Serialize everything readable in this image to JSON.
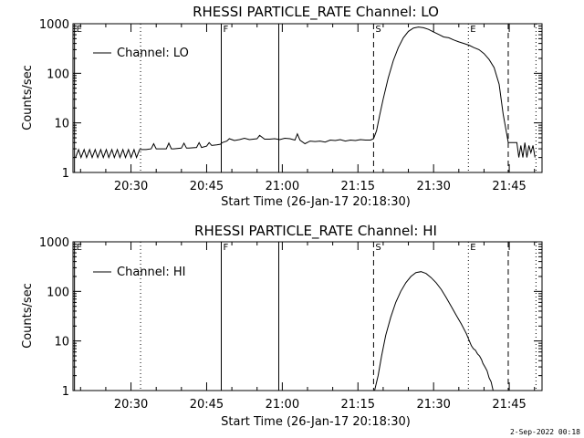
{
  "footer": {
    "timestamp": "2-Sep-2022 00:18"
  },
  "chart_data": [
    {
      "type": "line",
      "title": "RHESSI PARTICLE_RATE Channel: LO",
      "xlabel": "Start Time (26-Jan-17 20:18:30)",
      "ylabel": "Counts/sec",
      "x_unit": "minutes since 20:18:30",
      "xlim": [
        0,
        93
      ],
      "ylim": [
        1,
        1000
      ],
      "y_scale": "log",
      "x_ticks": [
        {
          "value": 11.5,
          "label": "20:30"
        },
        {
          "value": 26.5,
          "label": "20:45"
        },
        {
          "value": 41.5,
          "label": "21:00"
        },
        {
          "value": 56.5,
          "label": "21:15"
        },
        {
          "value": 71.5,
          "label": "21:30"
        },
        {
          "value": 86.5,
          "label": "21:45"
        }
      ],
      "y_ticks": [
        {
          "value": 1,
          "label": "1"
        },
        {
          "value": 10,
          "label": "10"
        },
        {
          "value": 100,
          "label": "100"
        },
        {
          "value": 1000,
          "label": "1000"
        }
      ],
      "legend": {
        "position": "top-left",
        "entries": [
          "Channel: LO"
        ]
      },
      "markers": [
        {
          "label": "E",
          "x": 0.3,
          "style": "solid"
        },
        {
          "label": "",
          "x": 13.4,
          "style": "dotted"
        },
        {
          "label": "F",
          "x": 29.4,
          "style": "solid"
        },
        {
          "label": "",
          "x": 40.8,
          "style": "solid"
        },
        {
          "label": "S",
          "x": 59.6,
          "style": "dashed"
        },
        {
          "label": "E",
          "x": 78.4,
          "style": "dotted"
        },
        {
          "label": "",
          "x": 86.3,
          "style": "dashed"
        },
        {
          "label": "",
          "x": 91.8,
          "style": "dotted"
        }
      ],
      "series": [
        {
          "name": "Channel: LO",
          "x": [
            0.5,
            1.1,
            1.6,
            2.2,
            2.7,
            3.3,
            3.8,
            4.4,
            4.9,
            5.5,
            6.0,
            6.6,
            7.1,
            7.7,
            8.2,
            8.8,
            9.3,
            9.9,
            10.4,
            11.0,
            11.5,
            12.1,
            12.6,
            13.2,
            13.4,
            14.5,
            15.5,
            16.0,
            16.5,
            17.0,
            18.5,
            19.0,
            19.5,
            20.0,
            21.5,
            22.0,
            22.5,
            23.0,
            24.5,
            25.0,
            25.5,
            26.5,
            27.0,
            27.5,
            28.5,
            29.2,
            29.6,
            30.5,
            31.0,
            32.0,
            33.0,
            34.0,
            35.0,
            36.5,
            37.0,
            38.0,
            39.0,
            40.0,
            41.0,
            42.0,
            43.0,
            44.0,
            44.5,
            45.0,
            46.0,
            47.0,
            48.0,
            49.0,
            50.0,
            51.0,
            52.0,
            53.0,
            54.0,
            55.0,
            56.0,
            57.0,
            58.0,
            59.0,
            59.6,
            60.2,
            60.8,
            61.5,
            62.5,
            63.5,
            64.5,
            65.5,
            66.5,
            67.5,
            68.5,
            69.5,
            70.5,
            71.5,
            72.5,
            73.5,
            74.5,
            75.5,
            76.5,
            77.5,
            78.5,
            79.5,
            80.5,
            81.5,
            82.5,
            83.5,
            84.5,
            85.3,
            86.0,
            86.3,
            87.0,
            87.5,
            88.0,
            88.4,
            88.8,
            89.2,
            89.6,
            90.0,
            90.4,
            90.8,
            91.2,
            91.6
          ],
          "values": [
            2.0,
            2.9,
            2.0,
            2.9,
            2.0,
            2.9,
            2.0,
            2.9,
            2.0,
            2.9,
            2.0,
            2.9,
            2.0,
            2.9,
            2.0,
            2.9,
            2.0,
            2.9,
            2.0,
            2.9,
            2.0,
            2.9,
            2.0,
            2.9,
            2.9,
            2.9,
            3.0,
            3.8,
            3.0,
            3.0,
            3.0,
            3.9,
            3.0,
            3.0,
            3.1,
            3.9,
            3.1,
            3.1,
            3.2,
            4.0,
            3.2,
            3.4,
            4.0,
            3.5,
            3.6,
            3.7,
            4.0,
            4.3,
            4.8,
            4.4,
            4.6,
            4.9,
            4.6,
            4.8,
            5.6,
            4.7,
            4.7,
            4.8,
            4.6,
            4.9,
            4.8,
            4.5,
            6.0,
            4.5,
            3.8,
            4.3,
            4.2,
            4.3,
            4.1,
            4.5,
            4.4,
            4.6,
            4.3,
            4.5,
            4.4,
            4.6,
            4.5,
            4.5,
            4.8,
            7.0,
            14.0,
            30.0,
            80.0,
            180.0,
            330.0,
            520.0,
            700.0,
            820.0,
            860.0,
            830.0,
            770.0,
            680.0,
            610.0,
            540.0,
            520.0,
            470.0,
            430.0,
            400.0,
            370.0,
            330.0,
            300.0,
            250.0,
            190.0,
            130.0,
            60.0,
            15.0,
            6.0,
            4.0,
            4.0,
            4.0,
            4.0,
            2.0,
            3.5,
            2.0,
            4.0,
            2.0,
            3.5,
            2.5,
            3.5,
            2.0
          ]
        }
      ]
    },
    {
      "type": "line",
      "title": "RHESSI PARTICLE_RATE Channel: HI",
      "xlabel": "Start Time (26-Jan-17 20:18:30)",
      "ylabel": "Counts/sec",
      "x_unit": "minutes since 20:18:30",
      "xlim": [
        0,
        93
      ],
      "ylim": [
        1,
        1000
      ],
      "y_scale": "log",
      "x_ticks": [
        {
          "value": 11.5,
          "label": "20:30"
        },
        {
          "value": 26.5,
          "label": "20:45"
        },
        {
          "value": 41.5,
          "label": "21:00"
        },
        {
          "value": 56.5,
          "label": "21:15"
        },
        {
          "value": 71.5,
          "label": "21:30"
        },
        {
          "value": 86.5,
          "label": "21:45"
        }
      ],
      "y_ticks": [
        {
          "value": 1,
          "label": "1"
        },
        {
          "value": 10,
          "label": "10"
        },
        {
          "value": 100,
          "label": "100"
        },
        {
          "value": 1000,
          "label": "1000"
        }
      ],
      "legend": {
        "position": "top-left",
        "entries": [
          "Channel: HI"
        ]
      },
      "markers": [
        {
          "label": "E",
          "x": 0.3,
          "style": "solid"
        },
        {
          "label": "",
          "x": 13.4,
          "style": "dotted"
        },
        {
          "label": "F",
          "x": 29.4,
          "style": "solid"
        },
        {
          "label": "",
          "x": 40.8,
          "style": "solid"
        },
        {
          "label": "S",
          "x": 59.6,
          "style": "dashed"
        },
        {
          "label": "E",
          "x": 78.4,
          "style": "dotted"
        },
        {
          "label": "",
          "x": 86.3,
          "style": "dashed"
        },
        {
          "label": "",
          "x": 91.8,
          "style": "dotted"
        }
      ],
      "series": [
        {
          "name": "Channel: HI",
          "x": [
            59.8,
            60.5,
            61.2,
            62.0,
            63.0,
            64.0,
            65.0,
            66.0,
            67.0,
            68.0,
            69.0,
            70.0,
            71.0,
            72.0,
            73.0,
            74.0,
            75.0,
            76.0,
            77.0,
            78.0,
            78.6,
            79.0,
            79.4,
            79.8,
            80.2,
            80.6,
            81.0,
            81.3,
            81.7,
            82.1,
            82.5,
            82.9,
            83.3
          ],
          "values": [
            1.0,
            2.0,
            5.0,
            13.0,
            30.0,
            60.0,
            100.0,
            150.0,
            200.0,
            240.0,
            250.0,
            230.0,
            190.0,
            150.0,
            110.0,
            75.0,
            50.0,
            33.0,
            22.0,
            14.0,
            10.0,
            8.0,
            7.0,
            6.5,
            5.5,
            5.0,
            4.2,
            3.5,
            3.0,
            2.5,
            1.8,
            1.5,
            1.0
          ]
        }
      ]
    }
  ]
}
